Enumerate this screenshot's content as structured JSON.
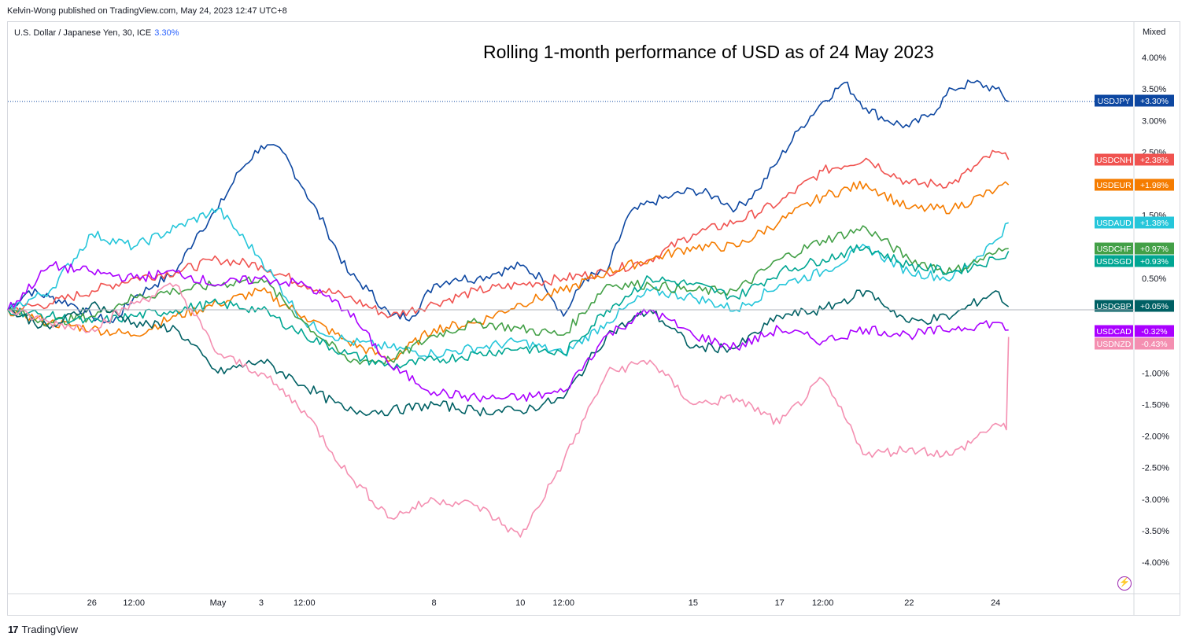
{
  "header": {
    "publisher": "Kelvin-Wong published on TradingView.com, May 24, 2023 12:47 UTC+8",
    "symbol": "U.S. Dollar / Japanese Yen, 30, ICE",
    "symbol_change": "3.30%",
    "scale_mode": "Mixed",
    "brand": "TradingView"
  },
  "chart_data": {
    "type": "line",
    "title": "Rolling 1-month performance of USD as of 24 May 2023",
    "xlabel": "",
    "ylabel": "",
    "ylim": [
      -4.5,
      4.5
    ],
    "grid": false,
    "y_ticks": [
      "4.00%",
      "3.50%",
      "3.00%",
      "2.50%",
      "1.50%",
      "0.50%",
      "-1.00%",
      "-1.50%",
      "-2.00%",
      "-2.50%",
      "-3.00%",
      "-3.50%",
      "-4.00%"
    ],
    "y_tick_values": [
      4.0,
      3.5,
      3.0,
      2.5,
      1.5,
      0.5,
      -1.0,
      -1.5,
      -2.0,
      -2.5,
      -3.0,
      -3.5,
      -4.0
    ],
    "x_ticks": [
      "26",
      "12:00",
      "May",
      "3",
      "12:00",
      "8",
      "10",
      "12:00",
      "15",
      "17",
      "12:00",
      "22",
      "24"
    ],
    "x_tick_positions": [
      2,
      3,
      5,
      6,
      7,
      10,
      12,
      13,
      16,
      18,
      19,
      21,
      23
    ],
    "x_range": [
      0,
      23.5
    ],
    "series": [
      {
        "name": "USDJPY",
        "label": "+3.30%",
        "last": 3.3,
        "color": "#0d47a1",
        "x": [
          0,
          0.5,
          1,
          1.5,
          2,
          2.5,
          3,
          3.5,
          4,
          4.5,
          5,
          5.5,
          6,
          6.5,
          7,
          7.5,
          8,
          8.5,
          9,
          9.5,
          10,
          10.5,
          11,
          11.5,
          12,
          12.5,
          13,
          13.5,
          14,
          14.5,
          15,
          15.5,
          16,
          16.5,
          17,
          17.5,
          18,
          18.5,
          19,
          19.5,
          20,
          20.5,
          21,
          21.5,
          22,
          22.5,
          23,
          23.3
        ],
        "values": [
          0.0,
          0.3,
          0.2,
          0.1,
          -0.1,
          -0.2,
          0.2,
          0.4,
          0.6,
          1.2,
          1.6,
          2.2,
          2.6,
          2.5,
          1.9,
          1.3,
          0.6,
          0.3,
          -0.1,
          -0.1,
          0.4,
          0.5,
          0.5,
          0.6,
          0.7,
          0.5,
          -0.1,
          0.5,
          0.6,
          1.5,
          1.7,
          1.8,
          1.9,
          1.8,
          1.6,
          1.9,
          2.4,
          2.9,
          3.3,
          3.6,
          3.2,
          3.0,
          2.9,
          3.1,
          3.5,
          3.6,
          3.5,
          3.3
        ]
      },
      {
        "name": "USDCNH",
        "label": "+2.38%",
        "last": 2.38,
        "color": "#f05350",
        "x": [
          0,
          1,
          2,
          3,
          4,
          5,
          6,
          7,
          8,
          9,
          10,
          11,
          12,
          13,
          14,
          15,
          16,
          17,
          18,
          19,
          20,
          21,
          22,
          23,
          23.3
        ],
        "values": [
          0.0,
          0.1,
          0.3,
          0.5,
          0.6,
          0.8,
          0.7,
          0.4,
          0.2,
          -0.1,
          0.1,
          0.3,
          0.4,
          0.5,
          0.6,
          0.8,
          1.2,
          1.4,
          1.7,
          2.2,
          2.4,
          2.0,
          2.0,
          2.5,
          2.38
        ]
      },
      {
        "name": "USDEUR",
        "label": "+1.98%",
        "last": 1.98,
        "color": "#f57c00",
        "x": [
          0,
          1,
          2,
          3,
          4,
          5,
          6,
          7,
          8,
          9,
          10,
          11,
          12,
          13,
          14,
          15,
          16,
          17,
          18,
          19,
          20,
          21,
          22,
          23,
          23.3
        ],
        "values": [
          0.0,
          -0.2,
          -0.3,
          -0.4,
          -0.1,
          0.1,
          0.3,
          -0.1,
          -0.5,
          -0.8,
          -0.3,
          -0.2,
          0.1,
          0.3,
          0.6,
          0.8,
          1.0,
          1.0,
          1.4,
          1.8,
          2.0,
          1.6,
          1.6,
          1.9,
          1.98
        ]
      },
      {
        "name": "USDAUD",
        "label": "+1.38%",
        "last": 1.38,
        "color": "#26c6da",
        "x": [
          0,
          1,
          2,
          3,
          4,
          5,
          6,
          7,
          8,
          9,
          10,
          11,
          12,
          13,
          14,
          15,
          16,
          17,
          18,
          19,
          20,
          21,
          22,
          23,
          23.3
        ],
        "values": [
          0.0,
          0.3,
          1.2,
          1.0,
          1.3,
          1.6,
          0.8,
          -0.2,
          -0.5,
          -0.6,
          -0.7,
          -0.6,
          -0.5,
          -0.7,
          -0.2,
          0.3,
          0.2,
          0.0,
          0.4,
          0.6,
          1.0,
          0.6,
          0.5,
          1.1,
          1.38
        ]
      },
      {
        "name": "USDCHF",
        "label": "+0.97%",
        "last": 0.97,
        "color": "#43a047",
        "x": [
          0,
          1,
          2,
          3,
          4,
          5,
          6,
          7,
          8,
          9,
          10,
          11,
          12,
          13,
          14,
          15,
          16,
          17,
          18,
          19,
          20,
          21,
          22,
          23,
          23.3
        ],
        "values": [
          0.0,
          -0.2,
          -0.1,
          0.2,
          0.3,
          0.4,
          0.5,
          -0.2,
          -0.8,
          -0.8,
          -0.4,
          -0.2,
          -0.3,
          -0.4,
          0.4,
          0.4,
          0.3,
          0.3,
          0.8,
          1.1,
          1.3,
          0.8,
          0.6,
          0.9,
          0.97
        ]
      },
      {
        "name": "USDSGD",
        "label": "+0.93%",
        "last": 0.93,
        "color": "#00a693",
        "x": [
          0,
          1,
          2,
          3,
          4,
          5,
          6,
          7,
          8,
          9,
          10,
          11,
          12,
          13,
          14,
          15,
          16,
          17,
          18,
          19,
          20,
          21,
          22,
          23,
          23.3
        ],
        "values": [
          0.0,
          -0.1,
          -0.2,
          -0.1,
          0.0,
          0.1,
          0.0,
          -0.4,
          -0.7,
          -0.9,
          -0.8,
          -0.7,
          -0.6,
          -0.7,
          0.0,
          0.5,
          0.4,
          0.2,
          0.6,
          0.8,
          1.0,
          0.7,
          0.6,
          0.8,
          0.93
        ]
      },
      {
        "name": "USDGBP",
        "label": "+0.05%",
        "last": 0.05,
        "color": "#006064",
        "x": [
          0,
          1,
          2,
          3,
          4,
          5,
          6,
          7,
          8,
          9,
          10,
          11,
          12,
          13,
          14,
          15,
          16,
          17,
          18,
          19,
          20,
          21,
          22,
          23,
          23.3
        ],
        "values": [
          0.0,
          -0.3,
          0.1,
          -0.2,
          -0.3,
          -1.0,
          -0.8,
          -1.2,
          -1.6,
          -1.6,
          -1.5,
          -1.6,
          -1.6,
          -1.4,
          -0.4,
          0.0,
          -0.6,
          -0.6,
          -0.1,
          0.0,
          0.3,
          -0.2,
          -0.1,
          0.3,
          0.05
        ]
      },
      {
        "name": "USDCAD",
        "label": "-0.32%",
        "last": -0.32,
        "color": "#aa00ff",
        "x": [
          0,
          1,
          2,
          3,
          4,
          5,
          6,
          7,
          8,
          9,
          10,
          11,
          12,
          13,
          14,
          15,
          16,
          17,
          18,
          19,
          20,
          21,
          22,
          23,
          23.3
        ],
        "values": [
          0.0,
          0.7,
          0.6,
          0.5,
          0.6,
          0.4,
          0.5,
          0.4,
          0.0,
          -0.9,
          -1.3,
          -1.4,
          -1.4,
          -1.3,
          -0.4,
          0.0,
          -0.4,
          -0.6,
          -0.3,
          -0.5,
          -0.3,
          -0.4,
          -0.3,
          -0.2,
          -0.32
        ]
      },
      {
        "name": "USDNZD",
        "label": "-0.43%",
        "last": -0.43,
        "color": "#f48fb1",
        "x": [
          0,
          1,
          2,
          3,
          4,
          5,
          6,
          7,
          8,
          9,
          10,
          11,
          12,
          13,
          14,
          15,
          16,
          17,
          18,
          19,
          20,
          21,
          22,
          23,
          23.25,
          23.3
        ],
        "values": [
          0.0,
          -0.2,
          -0.3,
          0.1,
          0.4,
          -0.7,
          -1.0,
          -1.6,
          -2.6,
          -3.3,
          -3.0,
          -3.1,
          -3.6,
          -2.4,
          -1.0,
          -0.8,
          -1.5,
          -1.4,
          -1.8,
          -1.1,
          -2.3,
          -2.2,
          -2.3,
          -1.8,
          -1.9,
          -0.43
        ]
      }
    ]
  }
}
